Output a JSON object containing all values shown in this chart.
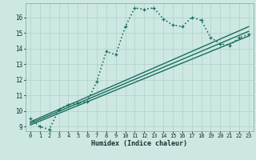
{
  "xlabel": "Humidex (Indice chaleur)",
  "xlim": [
    -0.5,
    23.5
  ],
  "ylim": [
    8.7,
    16.9
  ],
  "xticks": [
    0,
    1,
    2,
    3,
    4,
    5,
    6,
    7,
    8,
    9,
    10,
    11,
    12,
    13,
    14,
    15,
    16,
    17,
    18,
    19,
    20,
    21,
    22,
    23
  ],
  "yticks": [
    9,
    10,
    11,
    12,
    13,
    14,
    15,
    16
  ],
  "bg_color": "#cde8e2",
  "grid_color": "#b0d0c8",
  "line_color": "#1a6e60",
  "series": [
    {
      "x": [
        0,
        1,
        2,
        3,
        4,
        5,
        6,
        7,
        8,
        9,
        10,
        11,
        12,
        13,
        14,
        15,
        16,
        17,
        18,
        19,
        20,
        21,
        22,
        23
      ],
      "y": [
        9.5,
        9.0,
        8.8,
        10.1,
        10.4,
        10.5,
        10.6,
        11.9,
        13.8,
        13.6,
        15.4,
        16.6,
        16.5,
        16.6,
        15.9,
        15.5,
        15.4,
        16.0,
        15.8,
        14.7,
        14.3,
        14.2,
        14.7,
        14.9
      ],
      "style": "dotted",
      "marker": "+",
      "lw": 1.2
    },
    {
      "x": [
        0,
        23
      ],
      "y": [
        9.1,
        14.8
      ],
      "style": "-",
      "marker": null,
      "lw": 1.0
    },
    {
      "x": [
        0,
        23
      ],
      "y": [
        9.2,
        15.1
      ],
      "style": "-",
      "marker": null,
      "lw": 1.0
    },
    {
      "x": [
        0,
        23
      ],
      "y": [
        9.3,
        15.4
      ],
      "style": "-",
      "marker": null,
      "lw": 1.0
    }
  ]
}
